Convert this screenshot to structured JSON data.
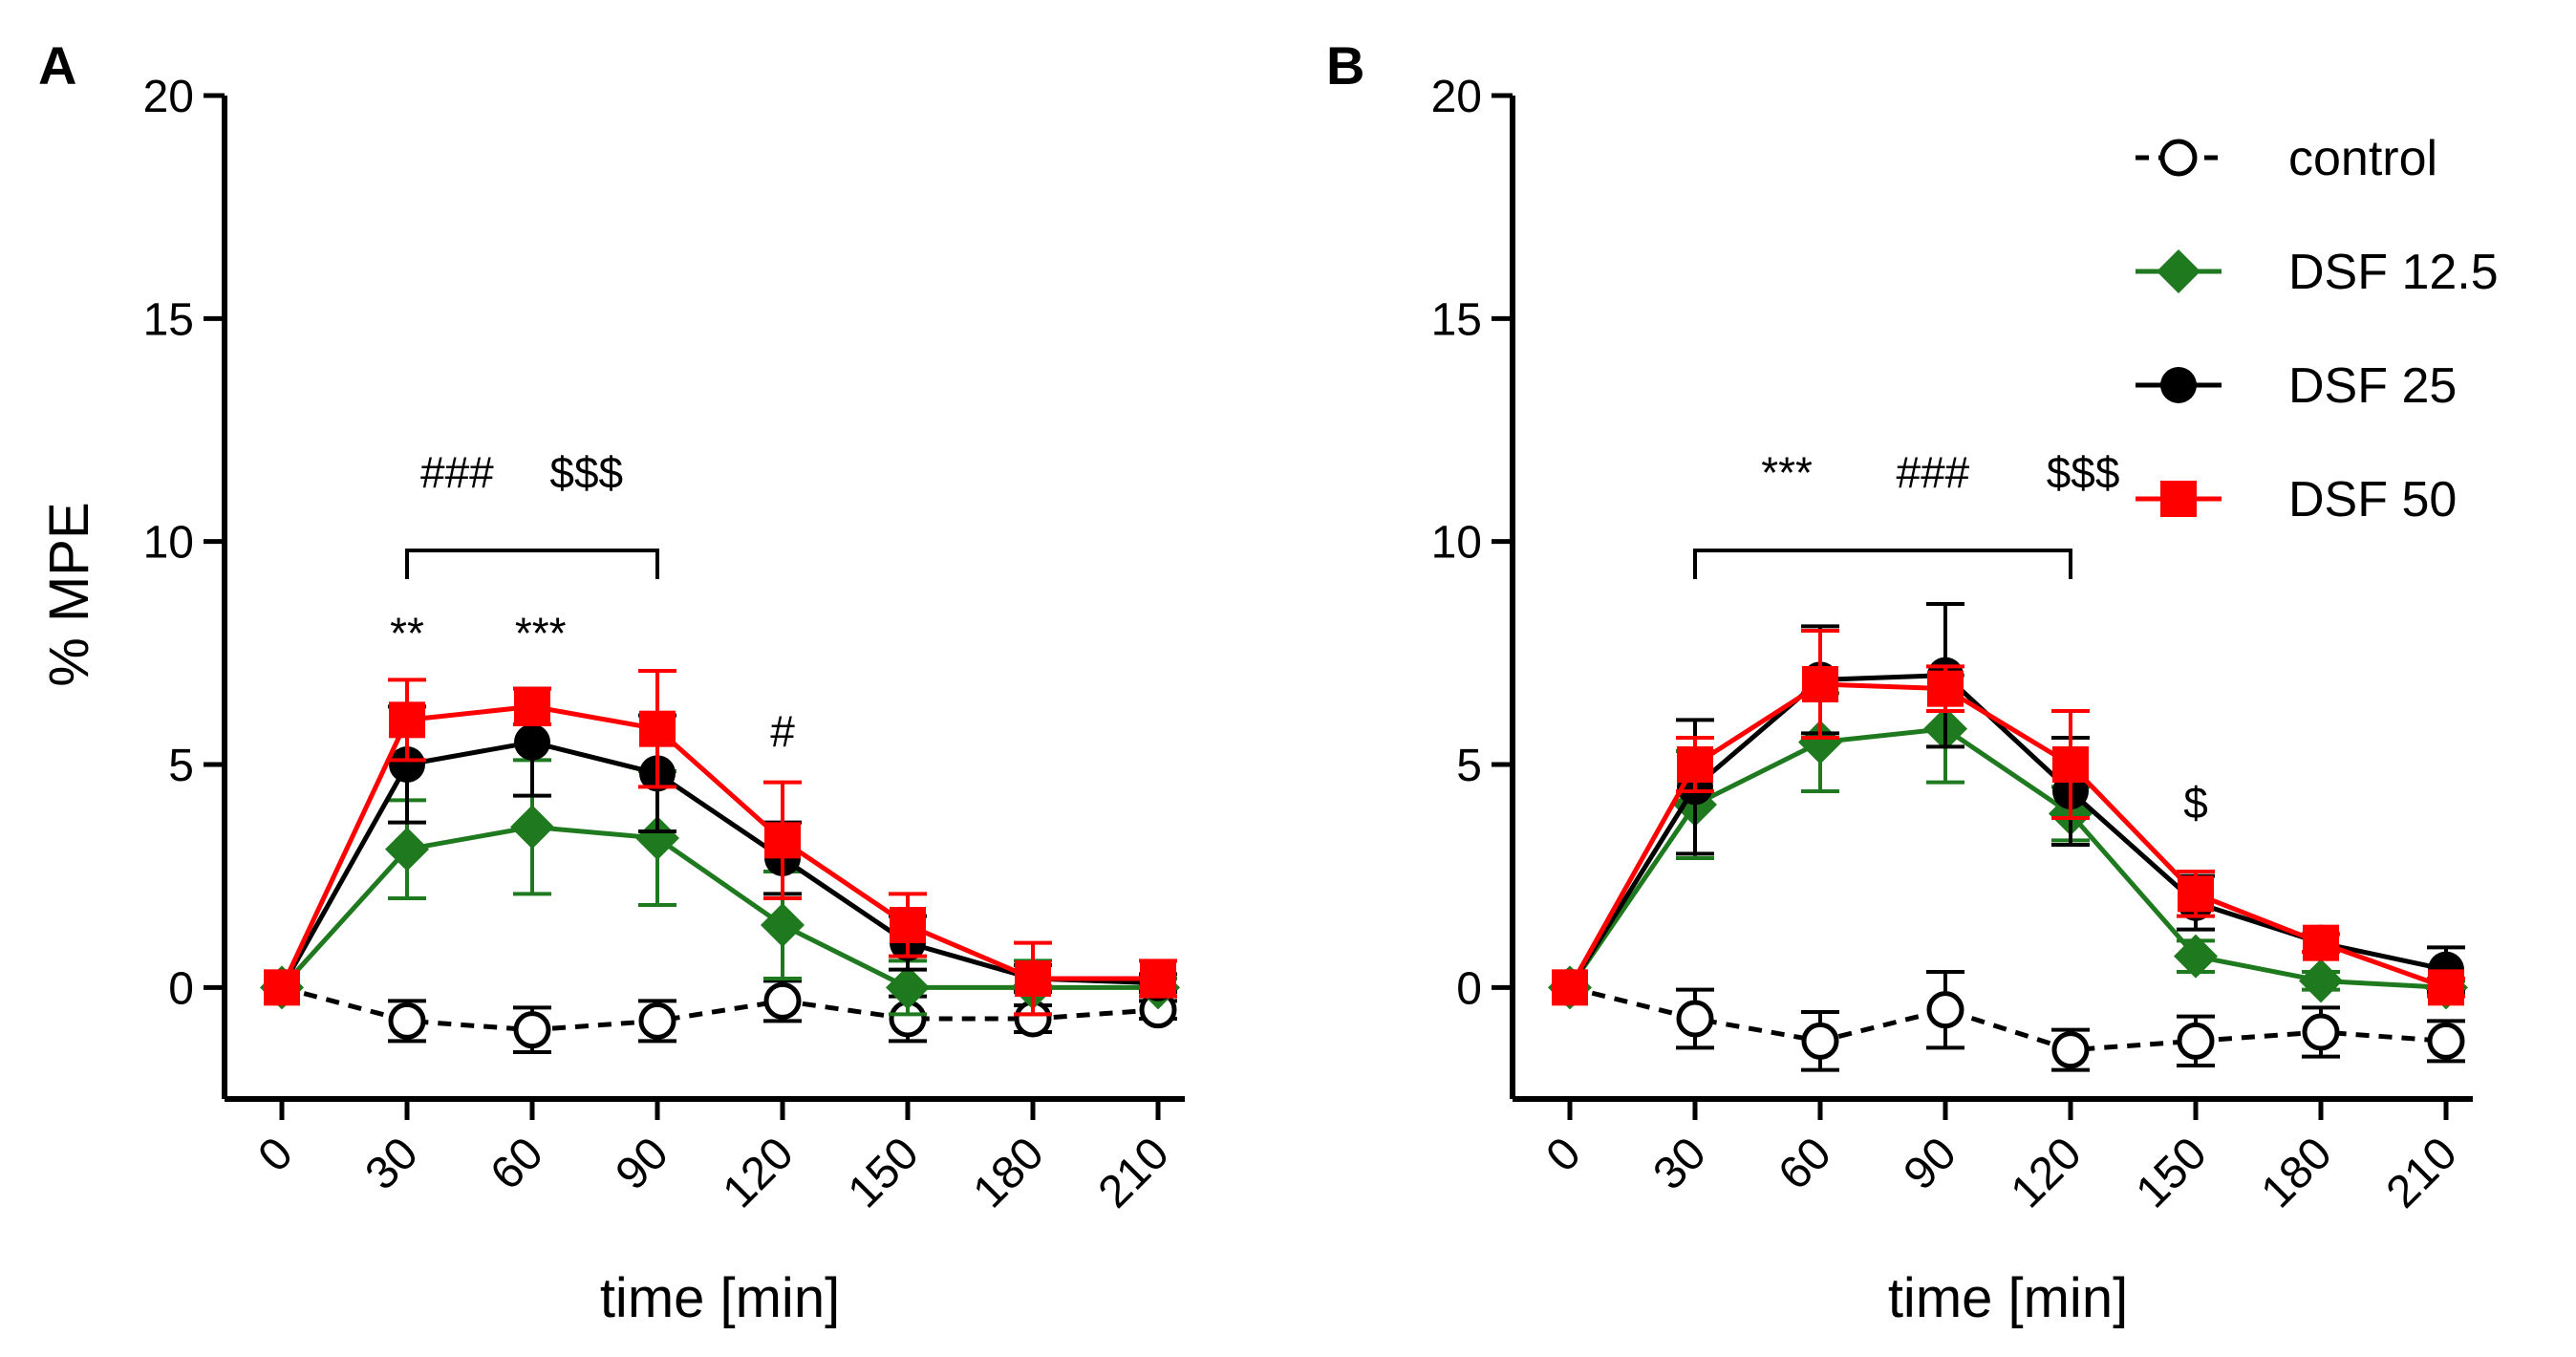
{
  "chart_data": [
    {
      "type": "line",
      "panel_label": "A",
      "xlabel": "time [min]",
      "ylabel": "% MPE",
      "x": [
        0,
        30,
        60,
        90,
        120,
        150,
        180,
        210
      ],
      "x_tick_labels": [
        "0",
        "30",
        "60",
        "90",
        "120",
        "150",
        "180",
        "210"
      ],
      "ylim": [
        -2.5,
        20
      ],
      "y_ticks": [
        0,
        5,
        10,
        15,
        20
      ],
      "y_tick_labels": [
        "0",
        "5",
        "10",
        "15",
        "20"
      ],
      "series": [
        {
          "name": "control",
          "color": "#000000",
          "marker": "open-circle",
          "dash": true,
          "values": [
            0,
            -0.75,
            -0.95,
            -0.75,
            -0.3,
            -0.7,
            -0.7,
            -0.5
          ],
          "err": [
            0,
            0.45,
            0.5,
            0.45,
            0.45,
            0.5,
            0.3,
            0.2
          ]
        },
        {
          "name": "DSF 12.5",
          "color": "#1f7a1f",
          "marker": "diamond",
          "dash": false,
          "values": [
            0,
            3.1,
            3.6,
            3.35,
            1.4,
            0.0,
            0.0,
            0.0
          ],
          "err": [
            0,
            1.1,
            1.5,
            1.5,
            1.2,
            0.6,
            0.6,
            0.2
          ]
        },
        {
          "name": "DSF 25",
          "color": "#000000",
          "marker": "filled-circle",
          "dash": false,
          "values": [
            0,
            5.0,
            5.5,
            4.8,
            2.9,
            1.0,
            0.2,
            0.1
          ],
          "err": [
            0,
            1.3,
            1.2,
            1.3,
            0.8,
            0.6,
            0.3,
            0.2
          ]
        },
        {
          "name": "DSF 50",
          "color": "#ff0000",
          "marker": "square",
          "dash": false,
          "values": [
            0,
            6.0,
            6.3,
            5.8,
            3.3,
            1.4,
            0.2,
            0.2
          ],
          "err": [
            0,
            0.9,
            0.4,
            1.3,
            1.3,
            0.7,
            0.8,
            0.4
          ]
        }
      ],
      "annotations": [
        {
          "text": "**",
          "x": 30,
          "y": 7.6
        },
        {
          "text": "***",
          "x": 62,
          "y": 7.6
        },
        {
          "text": "#",
          "x": 120,
          "y": 5.4
        },
        {
          "text": "###",
          "x": 42,
          "y": 11.2
        },
        {
          "text": "$$$",
          "x": 73,
          "y": 11.2
        }
      ],
      "bracket": {
        "x_start": 30,
        "x_end": 90,
        "y": 9.8
      }
    },
    {
      "type": "line",
      "panel_label": "B",
      "xlabel": "time [min]",
      "ylabel": "",
      "x": [
        0,
        30,
        60,
        90,
        120,
        150,
        180,
        210
      ],
      "x_tick_labels": [
        "0",
        "30",
        "60",
        "90",
        "120",
        "150",
        "180",
        "210"
      ],
      "ylim": [
        -2.5,
        20
      ],
      "y_ticks": [
        0,
        5,
        10,
        15,
        20
      ],
      "y_tick_labels": [
        "0",
        "5",
        "10",
        "15",
        "20"
      ],
      "series": [
        {
          "name": "control",
          "color": "#000000",
          "marker": "open-circle",
          "dash": true,
          "values": [
            0,
            -0.7,
            -1.2,
            -0.5,
            -1.4,
            -1.2,
            -1.0,
            -1.2
          ],
          "err": [
            0,
            0.65,
            0.65,
            0.85,
            0.45,
            0.55,
            0.55,
            0.45
          ]
        },
        {
          "name": "DSF 12.5",
          "color": "#1f7a1f",
          "marker": "diamond",
          "dash": false,
          "values": [
            0,
            4.1,
            5.5,
            5.8,
            3.9,
            0.7,
            0.15,
            0.0
          ],
          "err": [
            0,
            1.2,
            1.1,
            1.2,
            0.6,
            0.35,
            0.2,
            0.15
          ]
        },
        {
          "name": "DSF 25",
          "color": "#000000",
          "marker": "filled-circle",
          "dash": false,
          "values": [
            0,
            4.5,
            6.9,
            7.0,
            4.4,
            1.9,
            1.0,
            0.4
          ],
          "err": [
            0,
            1.5,
            1.2,
            1.6,
            1.2,
            0.6,
            0.2,
            0.5
          ]
        },
        {
          "name": "DSF 50",
          "color": "#ff0000",
          "marker": "square",
          "dash": false,
          "values": [
            0,
            5.0,
            6.8,
            6.7,
            5.0,
            2.1,
            1.0,
            0.0
          ],
          "err": [
            0,
            0.6,
            1.2,
            0.5,
            1.2,
            0.5,
            0.2,
            0.2
          ]
        }
      ],
      "annotations": [
        {
          "text": "***",
          "x": 52,
          "y": 11.2
        },
        {
          "text": "###",
          "x": 87,
          "y": 11.2
        },
        {
          "text": "$$$",
          "x": 123,
          "y": 11.2
        },
        {
          "text": "$",
          "x": 150,
          "y": 3.8
        }
      ],
      "bracket": {
        "x_start": 30,
        "x_end": 120,
        "y": 9.8
      },
      "legend": {
        "placement": "top-right",
        "entries": [
          "control",
          "DSF 12.5",
          "DSF 25",
          "DSF 50"
        ]
      }
    }
  ]
}
